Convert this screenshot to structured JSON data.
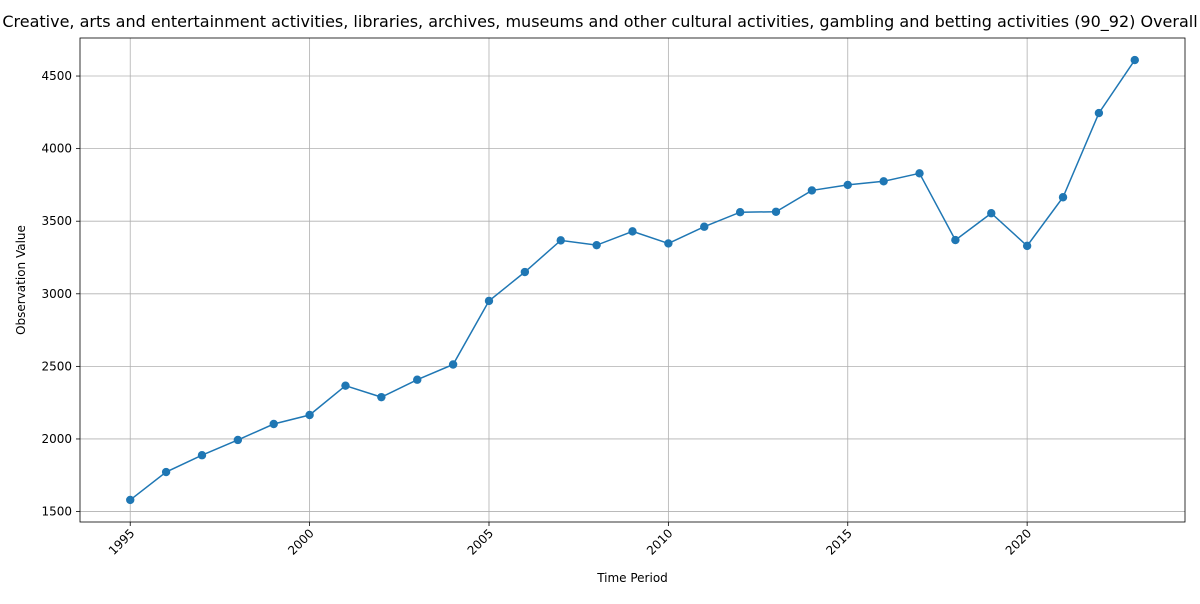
{
  "chart_data": {
    "type": "line",
    "title": "Creative, arts and entertainment activities, libraries, archives, museums and other cultural activities, gambling and betting activities (90_92) Overall",
    "xlabel": "Time Period",
    "ylabel": "Observation Value",
    "x": [
      1995,
      1996,
      1997,
      1998,
      1999,
      2000,
      2001,
      2002,
      2003,
      2004,
      2005,
      2006,
      2007,
      2008,
      2009,
      2010,
      2011,
      2012,
      2013,
      2014,
      2015,
      2016,
      2017,
      2018,
      2019,
      2020,
      2021,
      2022,
      2023
    ],
    "series": [
      {
        "values": [
          1580,
          1772,
          1888,
          1993,
          2103,
          2165,
          2367,
          2288,
          2408,
          2513,
          2951,
          3150,
          3368,
          3335,
          3430,
          3347,
          3462,
          3562,
          3565,
          3712,
          3750,
          3775,
          3830,
          3370,
          3555,
          3330,
          3665,
          4245,
          4610
        ],
        "color": "#1f77b4"
      }
    ],
    "xticks": [
      "1995",
      "2000",
      "2005",
      "2010",
      "2015",
      "2020"
    ],
    "yticks": [
      "1500",
      "2000",
      "2500",
      "3000",
      "3500",
      "4000",
      "4500"
    ],
    "xlim": [
      1993.6,
      2024.4
    ],
    "ylim": [
      1428,
      4762
    ],
    "grid": true,
    "marker": "circle"
  }
}
